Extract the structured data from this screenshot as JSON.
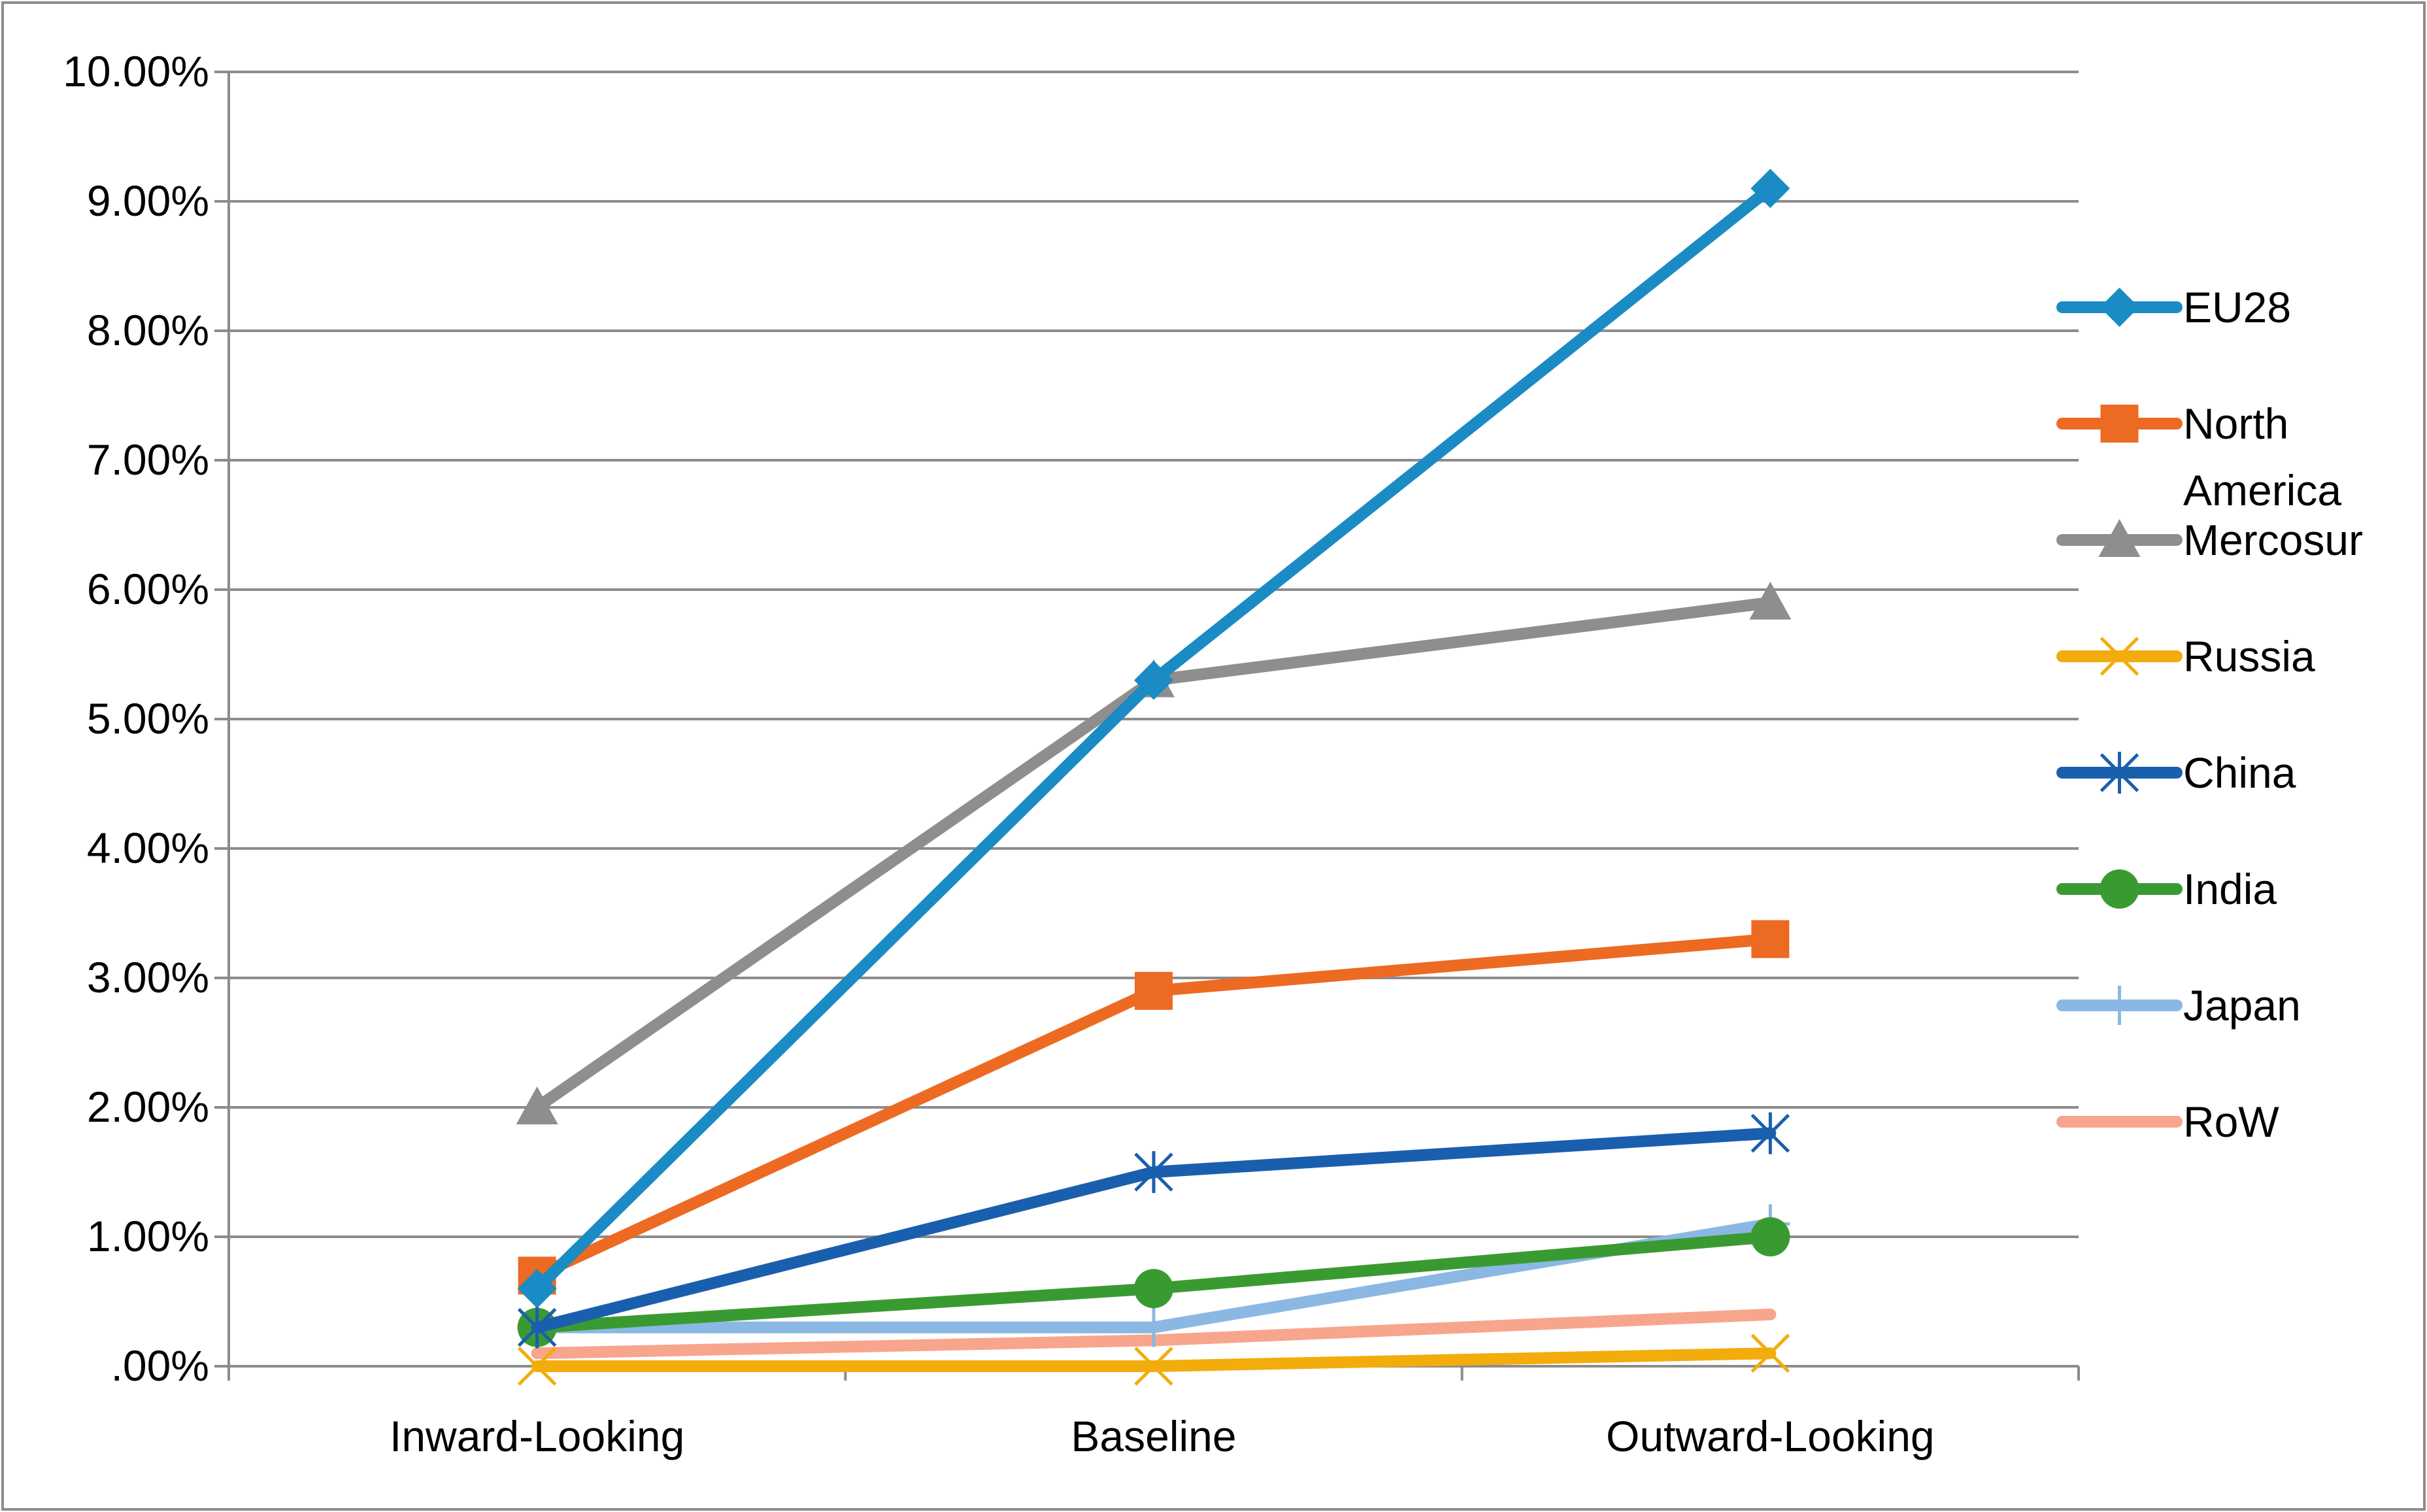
{
  "chart_data": {
    "type": "line",
    "title": "",
    "xlabel": "",
    "ylabel": "",
    "categories": [
      "Inward-Looking",
      "Baseline",
      "Outward-Looking"
    ],
    "ylim": [
      0,
      0.1
    ],
    "yticks": [
      0,
      0.01,
      0.02,
      0.03,
      0.04,
      0.05,
      0.06,
      0.07,
      0.08,
      0.09,
      0.1
    ],
    "ytick_labels": [
      ".00%",
      "1.00%",
      "2.00%",
      "3.00%",
      "4.00%",
      "5.00%",
      "6.00%",
      "7.00%",
      "8.00%",
      "9.00%",
      "10.00%"
    ],
    "grid": true,
    "legend_position": "right",
    "series": [
      {
        "name": "EU28",
        "values": [
          0.006,
          0.053,
          0.091
        ],
        "color": "#1a8bc4",
        "marker": "diamond"
      },
      {
        "name": "North America",
        "values": [
          0.007,
          0.029,
          0.033
        ],
        "color": "#ec6a22",
        "marker": "square"
      },
      {
        "name": "Mercosur",
        "values": [
          0.02,
          0.053,
          0.059
        ],
        "color": "#8e8e8e",
        "marker": "triangle"
      },
      {
        "name": "Russia",
        "values": [
          0.0,
          0.0,
          0.001
        ],
        "color": "#f2ac0c",
        "marker": "x"
      },
      {
        "name": "China",
        "values": [
          0.003,
          0.015,
          0.018
        ],
        "color": "#1a5fae",
        "marker": "star"
      },
      {
        "name": "India",
        "values": [
          0.003,
          0.006,
          0.01
        ],
        "color": "#3a9a32",
        "marker": "circle"
      },
      {
        "name": "Japan",
        "values": [
          0.003,
          0.003,
          0.011
        ],
        "color": "#8ab8e3",
        "marker": "plus"
      },
      {
        "name": "RoW",
        "values": [
          0.001,
          0.002,
          0.004
        ],
        "color": "#f7a58c",
        "marker": "none"
      }
    ]
  }
}
